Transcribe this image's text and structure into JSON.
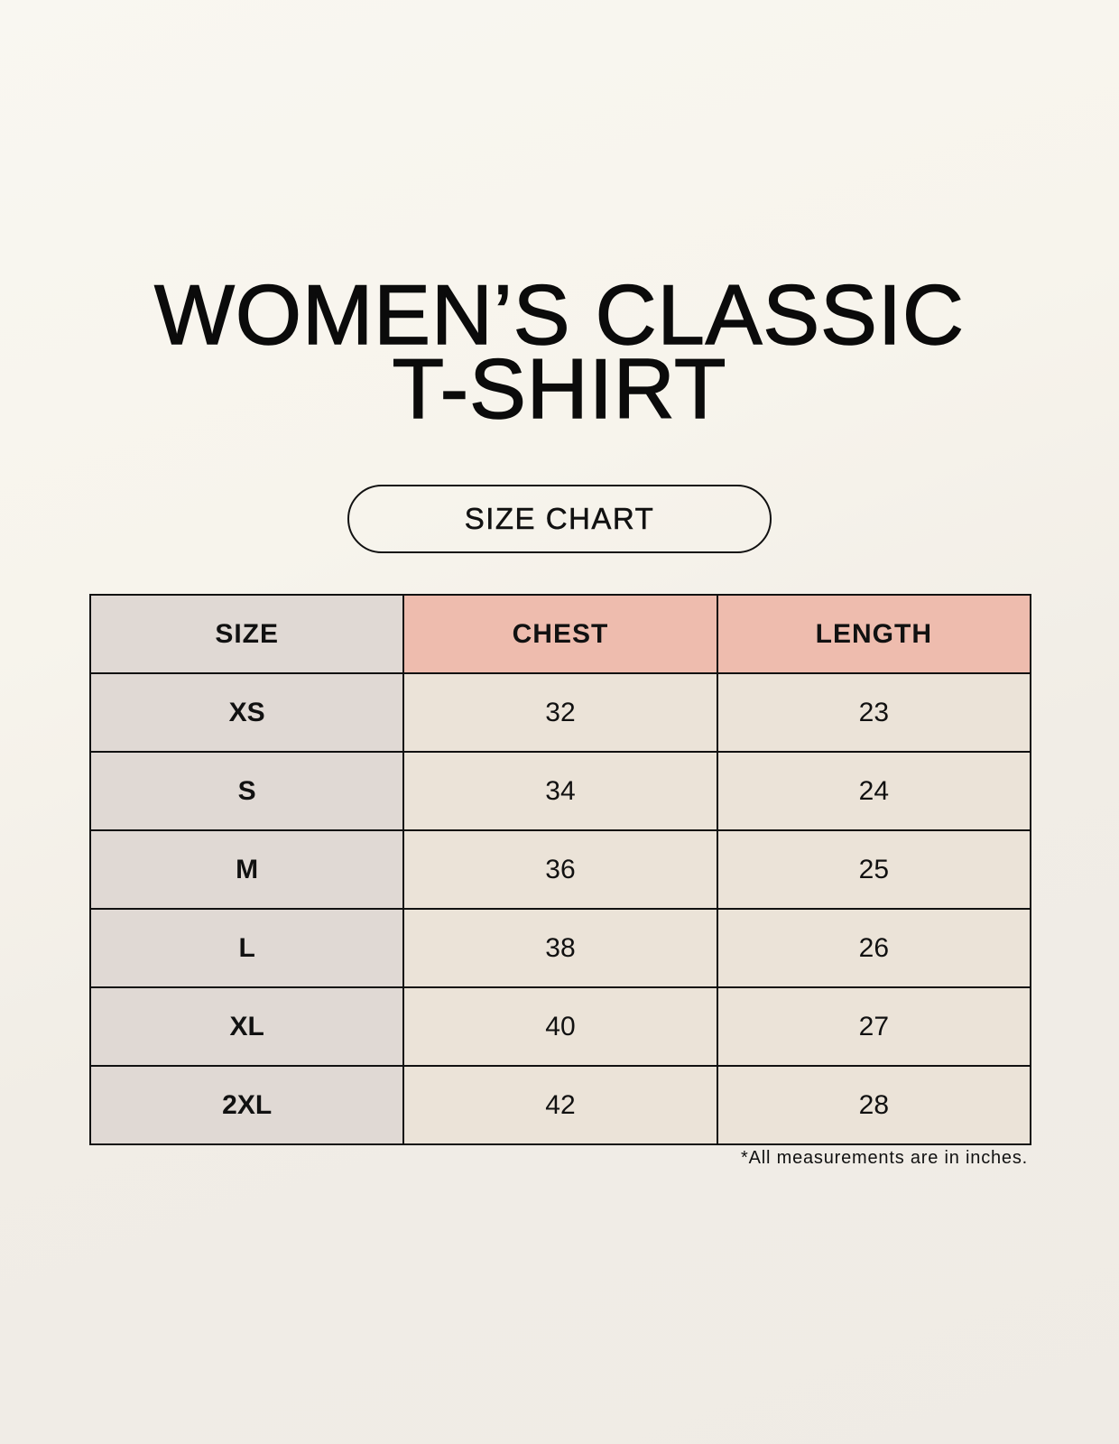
{
  "title": {
    "line1": "WOMEN’S CLASSIC",
    "line2": "T-SHIRT"
  },
  "subtitle": "SIZE CHART",
  "table": {
    "headers": [
      "SIZE",
      "CHEST",
      "LENGTH"
    ],
    "rows": [
      [
        "XS",
        "32",
        "23"
      ],
      [
        "S",
        "34",
        "24"
      ],
      [
        "M",
        "36",
        "25"
      ],
      [
        "L",
        "38",
        "26"
      ],
      [
        "XL",
        "40",
        "27"
      ],
      [
        "2XL",
        "42",
        "28"
      ]
    ]
  },
  "footnote": "*All measurements are in inches.",
  "colors": {
    "size_column": "#e0d9d4",
    "header_accent": "#eebcae",
    "cells": "#ebe3d8",
    "background": "#f8f6f0"
  }
}
